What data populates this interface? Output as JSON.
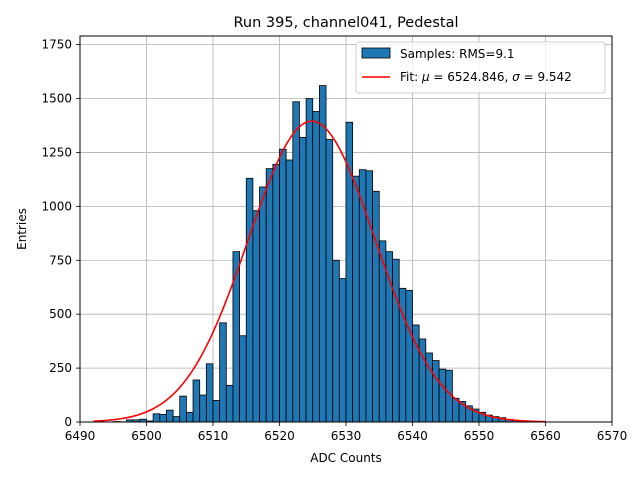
{
  "chart_data": {
    "type": "bar",
    "title": "Run 395, channel041, Pedestal",
    "xlabel": "ADC Counts",
    "ylabel": "Entries",
    "xlim": [
      6490,
      6570
    ],
    "ylim": [
      0,
      1790
    ],
    "xticks": [
      6490,
      6500,
      6510,
      6520,
      6530,
      6540,
      6550,
      6560,
      6570
    ],
    "yticks": [
      0,
      250,
      500,
      750,
      1000,
      1250,
      1500,
      1750
    ],
    "grid": true,
    "bin_width": 1,
    "histogram": {
      "name": "Samples: RMS=9.1",
      "color": "#1f77b4",
      "bins": [
        6495,
        6496,
        6497,
        6498,
        6499,
        6500,
        6501,
        6502,
        6503,
        6504,
        6505,
        6506,
        6507,
        6508,
        6509,
        6510,
        6511,
        6512,
        6513,
        6514,
        6515,
        6516,
        6517,
        6518,
        6519,
        6520,
        6521,
        6522,
        6523,
        6524,
        6525,
        6526,
        6527,
        6528,
        6529,
        6530,
        6531,
        6532,
        6533,
        6534,
        6535,
        6536,
        6537,
        6538,
        6539,
        6540,
        6541,
        6542,
        6543,
        6544,
        6545,
        6546,
        6547,
        6548,
        6549,
        6550,
        6551,
        6552,
        6553,
        6554,
        6555,
        6556,
        6557,
        6558,
        6559
      ],
      "counts": [
        2,
        1,
        10,
        10,
        13,
        5,
        38,
        35,
        55,
        25,
        120,
        45,
        195,
        125,
        270,
        100,
        460,
        170,
        790,
        400,
        1130,
        980,
        1090,
        1175,
        1195,
        1265,
        1215,
        1485,
        1320,
        1500,
        1440,
        1560,
        1310,
        750,
        665,
        1390,
        1140,
        1170,
        1165,
        1070,
        840,
        790,
        755,
        620,
        610,
        450,
        385,
        320,
        285,
        245,
        240,
        110,
        95,
        75,
        60,
        45,
        32,
        25,
        20,
        12,
        8,
        5,
        3,
        2,
        2
      ]
    },
    "fit": {
      "name": "Fit: μ = 6524.846, σ = 9.542",
      "legend_prefix": "Fit: ",
      "mu_symbol": "μ",
      "mu_text": " = 6524.846, ",
      "sigma_symbol": "σ",
      "sigma_text": " = 9.542",
      "color": "#ff0000",
      "mu": 6524.846,
      "sigma": 9.542,
      "amplitude": 1395,
      "x_range": [
        6492,
        6560
      ]
    },
    "legend": {
      "position": "top-right",
      "entries": [
        "Samples: RMS=9.1",
        "Fit: μ = 6524.846, σ = 9.542"
      ]
    }
  }
}
